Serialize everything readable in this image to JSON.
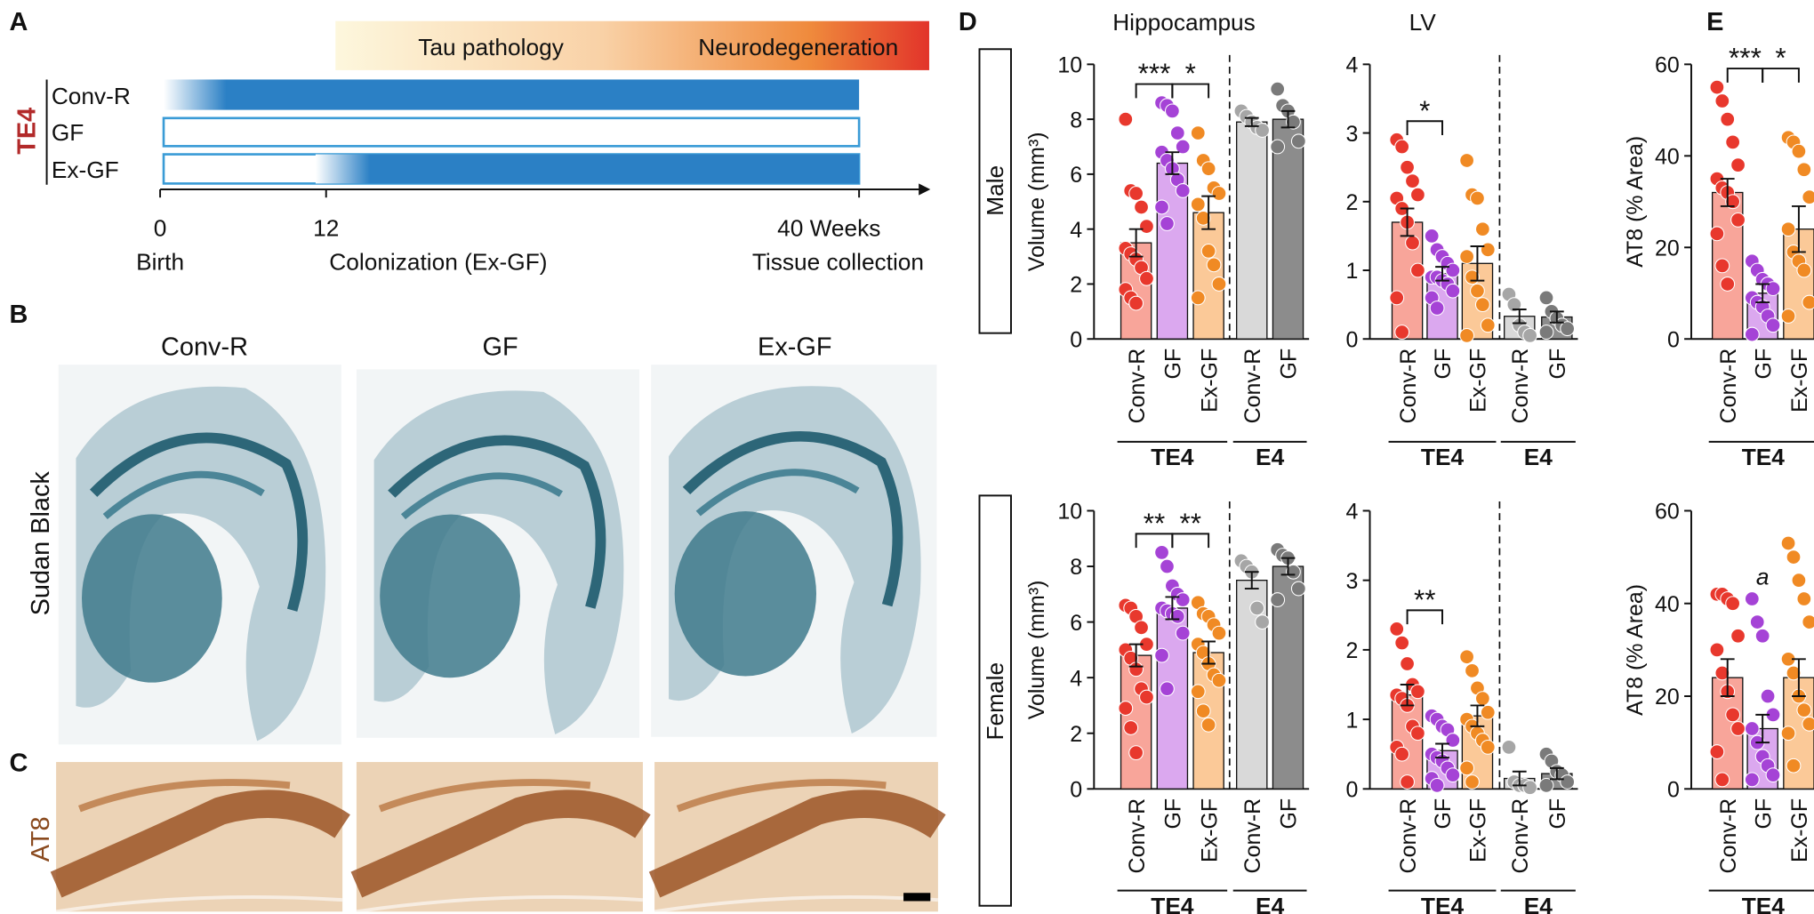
{
  "panel_a": {
    "label": "A",
    "stages": [
      "Tau pathology",
      "Neurodegeneration"
    ],
    "genotype": "TE4",
    "rows": [
      "Conv-R",
      "GF",
      "Ex-GF"
    ],
    "axis": [
      "0",
      "12",
      "40 Weeks"
    ],
    "events": [
      "Birth",
      "Colonization (Ex-GF)",
      "Tissue collection"
    ]
  },
  "panel_b": {
    "label": "B",
    "columns": [
      "Conv-R",
      "GF",
      "Ex-GF"
    ],
    "stain": "Sudan Black"
  },
  "panel_c": {
    "label": "C",
    "stain": "AT8"
  },
  "panel_d": {
    "label": "D",
    "rows": [
      "Male",
      "Female"
    ]
  },
  "panel_e": {
    "label": "E"
  },
  "chart_data": [
    {
      "type": "bar",
      "title": "Hippocampus",
      "y_label": "Volume (mm³)",
      "ylim": [
        0,
        10
      ],
      "yticks": [
        0,
        2,
        4,
        6,
        8,
        10
      ],
      "groups": [
        {
          "name": "TE4",
          "color": "#b22a2a",
          "categories": [
            "Conv-R",
            "GF",
            "Ex-GF"
          ],
          "values": [
            3.5,
            6.4,
            4.6
          ],
          "errors": [
            0.5,
            0.4,
            0.6
          ],
          "bar_colors": [
            "#f8a59a",
            "#dba8ef",
            "#fbc998"
          ],
          "dot_colors": [
            "#e8382d",
            "#a543d6",
            "#f08a24"
          ],
          "significance": [
            "***",
            "*"
          ],
          "points": [
            [
              8.0,
              5.4,
              5.3,
              4.8,
              4.1,
              3.3,
              3.1,
              2.9,
              2.6,
              2.2,
              1.8,
              1.5,
              1.3
            ],
            [
              8.6,
              8.5,
              8.3,
              7.5,
              7.0,
              6.8,
              6.5,
              6.2,
              5.8,
              5.4,
              4.8,
              4.2
            ],
            [
              7.5,
              6.5,
              6.2,
              5.5,
              5.3,
              4.9,
              4.4,
              3.2,
              2.7,
              2.0,
              1.5
            ]
          ]
        },
        {
          "name": "E4",
          "color": "#111111",
          "categories": [
            "Conv-R",
            "GF"
          ],
          "values": [
            7.9,
            8.0
          ],
          "errors": [
            0.15,
            0.3
          ],
          "bar_colors": [
            "#d9d9d9",
            "#8c8c8c"
          ],
          "dot_colors": [
            "#a6a6a6",
            "#7a7a7a"
          ],
          "points": [
            [
              8.3,
              8.1,
              7.9,
              7.7,
              7.6
            ],
            [
              9.1,
              8.5,
              8.3,
              7.9,
              7.2,
              7.0
            ]
          ]
        }
      ]
    },
    {
      "type": "bar",
      "title": "LV",
      "ylim": [
        0,
        4
      ],
      "yticks": [
        0,
        1,
        2,
        3,
        4
      ],
      "groups": [
        {
          "name": "TE4",
          "color": "#b22a2a",
          "categories": [
            "Conv-R",
            "GF",
            "Ex-GF"
          ],
          "values": [
            1.7,
            0.95,
            1.1
          ],
          "errors": [
            0.2,
            0.1,
            0.25
          ],
          "bar_colors": [
            "#f8a59a",
            "#dba8ef",
            "#fbc998"
          ],
          "dot_colors": [
            "#e8382d",
            "#a543d6",
            "#f08a24"
          ],
          "significance": [
            "*"
          ],
          "points": [
            [
              2.9,
              2.8,
              2.5,
              2.3,
              2.1,
              2.05,
              1.9,
              1.7,
              1.4,
              1.0,
              0.6,
              0.1
            ],
            [
              1.5,
              1.3,
              1.2,
              1.1,
              1.0,
              0.9,
              0.9,
              0.85,
              0.8,
              0.7,
              0.6,
              0.45
            ],
            [
              2.6,
              2.1,
              2.05,
              1.6,
              1.3,
              1.2,
              0.9,
              0.7,
              0.5,
              0.2,
              0.05
            ]
          ]
        },
        {
          "name": "E4",
          "color": "#111111",
          "categories": [
            "Conv-R",
            "GF"
          ],
          "values": [
            0.33,
            0.32
          ],
          "errors": [
            0.1,
            0.08
          ],
          "bar_colors": [
            "#d9d9d9",
            "#8c8c8c"
          ],
          "dot_colors": [
            "#a6a6a6",
            "#7a7a7a"
          ],
          "points": [
            [
              0.65,
              0.5,
              0.2,
              0.1,
              0.05
            ],
            [
              0.6,
              0.4,
              0.3,
              0.2,
              0.15,
              0.1
            ]
          ]
        }
      ]
    },
    {
      "type": "bar",
      "y_label": "AT8  (% Area)",
      "ylim": [
        0,
        60
      ],
      "yticks": [
        0,
        20,
        40,
        60
      ],
      "groups": [
        {
          "name": "TE4",
          "color": "#b22a2a",
          "categories": [
            "Conv-R",
            "GF",
            "Ex-GF"
          ],
          "values": [
            32,
            10,
            24
          ],
          "errors": [
            3,
            2,
            5
          ],
          "bar_colors": [
            "#f8a59a",
            "#dba8ef",
            "#fbc998"
          ],
          "dot_colors": [
            "#e8382d",
            "#a543d6",
            "#f08a24"
          ],
          "significance": [
            "***",
            "*"
          ],
          "points": [
            [
              55,
              52,
              48,
              43,
              38,
              35,
              33,
              32,
              30,
              26,
              23,
              16,
              12
            ],
            [
              17,
              15,
              13,
              12,
              11,
              9,
              8,
              7,
              5,
              3,
              1
            ],
            [
              44,
              43,
              41,
              37,
              31,
              24,
              19,
              17,
              15,
              8,
              5
            ]
          ]
        }
      ]
    },
    {
      "type": "bar",
      "y_label": "Volume (mm³)",
      "ylim": [
        0,
        10
      ],
      "yticks": [
        0,
        2,
        4,
        6,
        8,
        10
      ],
      "groups": [
        {
          "name": "TE4",
          "color": "#b22a2a",
          "categories": [
            "Conv-R",
            "GF",
            "Ex-GF"
          ],
          "values": [
            4.8,
            6.5,
            4.9
          ],
          "errors": [
            0.4,
            0.4,
            0.4
          ],
          "bar_colors": [
            "#f8a59a",
            "#dba8ef",
            "#fbc998"
          ],
          "dot_colors": [
            "#e8382d",
            "#a543d6",
            "#f08a24"
          ],
          "significance": [
            "**",
            "**"
          ],
          "points": [
            [
              6.6,
              6.5,
              6.2,
              5.8,
              5.2,
              5.0,
              4.7,
              4.3,
              3.6,
              3.3,
              2.9,
              2.2,
              1.3
            ],
            [
              8.5,
              8.0,
              7.3,
              7.0,
              6.8,
              6.5,
              6.4,
              6.3,
              6.2,
              5.6,
              4.8,
              3.6
            ],
            [
              6.7,
              6.3,
              6.2,
              5.9,
              5.6,
              5.2,
              4.9,
              4.5,
              4.1,
              3.9,
              3.5,
              2.8,
              2.3
            ]
          ]
        },
        {
          "name": "E4",
          "color": "#111111",
          "categories": [
            "Conv-R",
            "GF"
          ],
          "values": [
            7.5,
            8.0
          ],
          "errors": [
            0.3,
            0.3
          ],
          "bar_colors": [
            "#d9d9d9",
            "#8c8c8c"
          ],
          "dot_colors": [
            "#a6a6a6",
            "#7a7a7a"
          ],
          "points": [
            [
              8.2,
              8.0,
              7.8,
              6.5,
              6.0
            ],
            [
              8.6,
              8.4,
              8.3,
              7.8,
              7.2,
              6.8
            ]
          ]
        }
      ]
    },
    {
      "type": "bar",
      "ylim": [
        0,
        4
      ],
      "yticks": [
        0,
        1,
        2,
        3,
        4
      ],
      "groups": [
        {
          "name": "TE4",
          "color": "#b22a2a",
          "categories": [
            "Conv-R",
            "GF",
            "Ex-GF"
          ],
          "values": [
            1.35,
            0.55,
            1.05
          ],
          "errors": [
            0.15,
            0.1,
            0.15
          ],
          "bar_colors": [
            "#f8a59a",
            "#dba8ef",
            "#fbc998"
          ],
          "dot_colors": [
            "#e8382d",
            "#a543d6",
            "#f08a24"
          ],
          "significance": [
            "**"
          ],
          "points": [
            [
              2.3,
              2.1,
              1.8,
              1.5,
              1.4,
              1.35,
              1.3,
              1.2,
              0.9,
              0.8,
              0.6,
              0.5,
              0.1
            ],
            [
              1.05,
              1.0,
              0.9,
              0.85,
              0.7,
              0.5,
              0.45,
              0.4,
              0.3,
              0.2,
              0.15,
              0.05
            ],
            [
              1.9,
              1.7,
              1.45,
              1.3,
              1.1,
              1.0,
              0.9,
              0.8,
              0.7,
              0.6,
              0.3,
              0.1
            ]
          ]
        },
        {
          "name": "E4",
          "color": "#111111",
          "categories": [
            "Conv-R",
            "GF"
          ],
          "values": [
            0.15,
            0.22
          ],
          "errors": [
            0.1,
            0.08
          ],
          "bar_colors": [
            "#d9d9d9",
            "#8c8c8c"
          ],
          "dot_colors": [
            "#a6a6a6",
            "#7a7a7a"
          ],
          "points": [
            [
              0.6,
              0.1,
              0.05,
              0.05,
              0.02
            ],
            [
              0.5,
              0.4,
              0.25,
              0.2,
              0.1,
              0.05
            ]
          ]
        }
      ]
    },
    {
      "type": "bar",
      "y_label": "AT8 (% Area)",
      "ylim": [
        0,
        60
      ],
      "yticks": [
        0,
        20,
        40,
        60
      ],
      "groups": [
        {
          "name": "TE4",
          "color": "#b22a2a",
          "categories": [
            "Conv-R",
            "GF",
            "Ex-GF"
          ],
          "values": [
            24,
            13,
            24
          ],
          "errors": [
            4,
            3,
            4
          ],
          "bar_colors": [
            "#f8a59a",
            "#dba8ef",
            "#fbc998"
          ],
          "dot_colors": [
            "#e8382d",
            "#a543d6",
            "#f08a24"
          ],
          "notes": [
            null,
            "a",
            null
          ],
          "points": [
            [
              42,
              42,
              41,
              40,
              33,
              30,
              25,
              21,
              16,
              13,
              8,
              2
            ],
            [
              41,
              36,
              33,
              20,
              16,
              13,
              10,
              7,
              5,
              3,
              2
            ],
            [
              53,
              50,
              45,
              41,
              36,
              28,
              25,
              20,
              17,
              14,
              12,
              5
            ]
          ]
        }
      ]
    }
  ]
}
